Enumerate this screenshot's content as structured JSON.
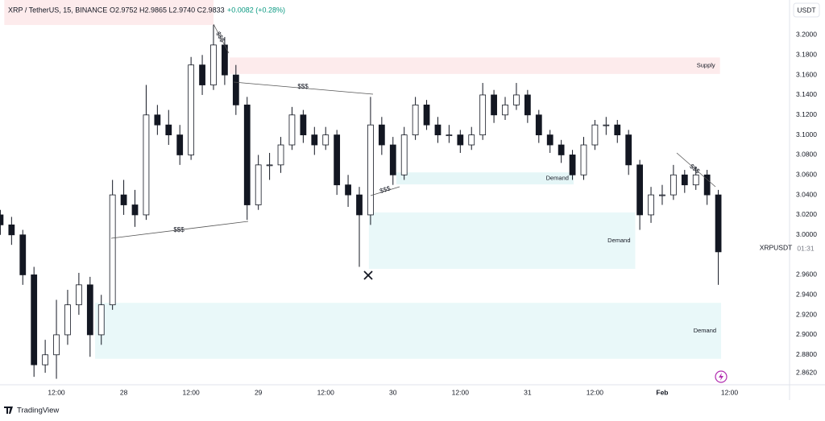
{
  "chart_data": {
    "type": "candlestick",
    "header": {
      "symbol": "XRP / TetherUS, 15, BINANCE",
      "ohlc": "O2.9752 H2.9865 L2.9740 C2.9833",
      "change": "+0.0082 (+0.28%)"
    },
    "currency": "USDT",
    "price_label": "XRPUSDT",
    "countdown": "01:31",
    "brand": "TradingView",
    "xlim": [
      1.94,
      142.7
    ],
    "ylim": [
      2.85,
      3.235
    ],
    "grid": false,
    "up_color": "#ffffff",
    "down_color": "#131722",
    "xticks": [
      {
        "value": 12,
        "label": "12:00"
      },
      {
        "value": 24,
        "label": "28"
      },
      {
        "value": 36,
        "label": "12:00"
      },
      {
        "value": 48,
        "label": "29"
      },
      {
        "value": 60,
        "label": "12:00"
      },
      {
        "value": 72,
        "label": "30"
      },
      {
        "value": 84,
        "label": "12:00"
      },
      {
        "value": 96,
        "label": "31"
      },
      {
        "value": 108,
        "label": "12:00"
      },
      {
        "value": 120,
        "label": "Feb"
      },
      {
        "value": 132,
        "label": "12:00"
      }
    ],
    "yticks": [
      {
        "value": 3.2,
        "label": "3.2000"
      },
      {
        "value": 3.18,
        "label": "3.1800"
      },
      {
        "value": 3.16,
        "label": "3.1600"
      },
      {
        "value": 3.14,
        "label": "3.1400"
      },
      {
        "value": 3.12,
        "label": "3.1200"
      },
      {
        "value": 3.1,
        "label": "3.1000"
      },
      {
        "value": 3.08,
        "label": "3.0800"
      },
      {
        "value": 3.06,
        "label": "3.0600"
      },
      {
        "value": 3.04,
        "label": "3.0400"
      },
      {
        "value": 3.02,
        "label": "3.0200"
      },
      {
        "value": 3.0,
        "label": "3.0000"
      },
      {
        "value": 2.96,
        "label": "2.9600"
      },
      {
        "value": 2.94,
        "label": "2.9400"
      },
      {
        "value": 2.92,
        "label": "2.9200"
      },
      {
        "value": 2.9,
        "label": "2.9000"
      },
      {
        "value": 2.88,
        "label": "2.8800"
      },
      {
        "value": 2.862,
        "label": "2.8620"
      }
    ],
    "zones": [
      {
        "kind": "supply",
        "color": "#fdebec",
        "x": [
          2.7,
          40
        ],
        "y": [
          3.21,
          3.235
        ]
      },
      {
        "kind": "supply",
        "color": "#fdebec",
        "label": "Supply",
        "x": [
          42.9,
          130.3
        ],
        "y": [
          3.161,
          3.1775
        ]
      },
      {
        "kind": "demand",
        "color": "#e5f6f7",
        "label": "Demand",
        "x": [
          72.6,
          104.2
        ],
        "y": [
          3.0505,
          3.0625
        ]
      },
      {
        "kind": "demand",
        "color": "#e9f8f9",
        "label": "Demand",
        "x": [
          67.7,
          115.2
        ],
        "y": [
          2.966,
          3.0225
        ]
      },
      {
        "kind": "demand",
        "color": "#e9f8f9",
        "label": "Demand",
        "x": [
          18.9,
          130.5
        ],
        "y": [
          2.876,
          2.932
        ]
      }
    ],
    "annotations": [
      "$$$",
      "$$$",
      "$$$",
      "$$$",
      "$$$"
    ],
    "x": [
      2,
      4,
      6,
      8,
      10,
      12,
      14,
      16,
      18,
      20,
      22,
      24,
      26,
      28,
      30,
      32,
      34,
      36,
      38,
      40,
      42,
      44,
      46,
      48,
      50,
      52,
      54,
      56,
      58,
      60,
      62,
      64,
      66,
      68,
      70,
      72,
      74,
      76,
      78,
      80,
      82,
      84,
      86,
      88,
      90,
      92,
      94,
      96,
      98,
      100,
      102,
      104,
      106,
      108,
      110,
      112,
      114,
      116,
      118,
      120,
      122,
      124,
      126,
      128,
      130
    ],
    "open": [
      3.02,
      3.01,
      3.0,
      2.96,
      2.87,
      2.88,
      2.9,
      2.93,
      2.95,
      2.9,
      2.93,
      3.04,
      3.03,
      3.02,
      3.12,
      3.11,
      3.1,
      3.08,
      3.17,
      3.15,
      3.19,
      3.16,
      3.13,
      3.03,
      3.07,
      3.07,
      3.09,
      3.12,
      3.1,
      3.09,
      3.1,
      3.05,
      3.04,
      3.02,
      3.11,
      3.09,
      3.06,
      3.1,
      3.13,
      3.11,
      3.1,
      3.1,
      3.09,
      3.1,
      3.14,
      3.12,
      3.13,
      3.14,
      3.12,
      3.1,
      3.09,
      3.08,
      3.06,
      3.09,
      3.11,
      3.11,
      3.1,
      3.07,
      3.02,
      3.04,
      3.04,
      3.06,
      3.05,
      3.06,
      3.04
    ],
    "high": [
      3.025,
      3.018,
      3.005,
      2.968,
      2.895,
      2.935,
      2.945,
      2.962,
      2.958,
      2.94,
      3.055,
      3.055,
      3.045,
      3.15,
      3.13,
      3.125,
      3.11,
      3.178,
      3.18,
      3.21,
      3.198,
      3.17,
      3.138,
      3.08,
      3.082,
      3.098,
      3.128,
      3.125,
      3.108,
      3.108,
      3.105,
      3.06,
      3.048,
      3.138,
      3.118,
      3.098,
      3.108,
      3.138,
      3.135,
      3.118,
      3.11,
      3.105,
      3.108,
      3.152,
      3.145,
      3.138,
      3.152,
      3.145,
      3.125,
      3.105,
      3.095,
      3.085,
      3.098,
      3.115,
      3.118,
      3.115,
      3.105,
      3.075,
      3.048,
      3.05,
      3.07,
      3.065,
      3.068,
      3.065,
      3.045
    ],
    "low": [
      3.0,
      2.99,
      2.95,
      2.858,
      2.862,
      2.856,
      2.89,
      2.92,
      2.878,
      2.89,
      2.925,
      3.02,
      3.008,
      3.015,
      3.1,
      3.09,
      3.07,
      3.075,
      3.14,
      3.145,
      3.15,
      3.12,
      3.015,
      3.025,
      3.055,
      3.062,
      3.085,
      3.092,
      3.08,
      3.085,
      3.04,
      3.028,
      2.968,
      3.01,
      3.08,
      3.05,
      3.055,
      3.095,
      3.105,
      3.092,
      3.092,
      3.082,
      3.085,
      3.095,
      3.112,
      3.115,
      3.125,
      3.112,
      3.092,
      3.082,
      3.072,
      3.055,
      3.055,
      3.085,
      3.1,
      3.092,
      3.06,
      3.005,
      3.012,
      3.03,
      3.035,
      3.042,
      3.045,
      3.03,
      2.95
    ],
    "close": [
      3.01,
      3.0,
      2.96,
      2.87,
      2.88,
      2.9,
      2.93,
      2.95,
      2.9,
      2.93,
      3.04,
      3.03,
      3.02,
      3.12,
      3.11,
      3.1,
      3.08,
      3.17,
      3.15,
      3.19,
      3.16,
      3.13,
      3.03,
      3.07,
      3.07,
      3.09,
      3.12,
      3.1,
      3.09,
      3.1,
      3.05,
      3.04,
      3.02,
      3.11,
      3.09,
      3.06,
      3.1,
      3.13,
      3.11,
      3.1,
      3.1,
      3.09,
      3.1,
      3.14,
      3.12,
      3.13,
      3.14,
      3.12,
      3.1,
      3.09,
      3.08,
      3.06,
      3.09,
      3.11,
      3.11,
      3.1,
      3.07,
      3.02,
      3.04,
      3.04,
      3.06,
      3.05,
      3.06,
      3.04,
      2.983
    ]
  }
}
